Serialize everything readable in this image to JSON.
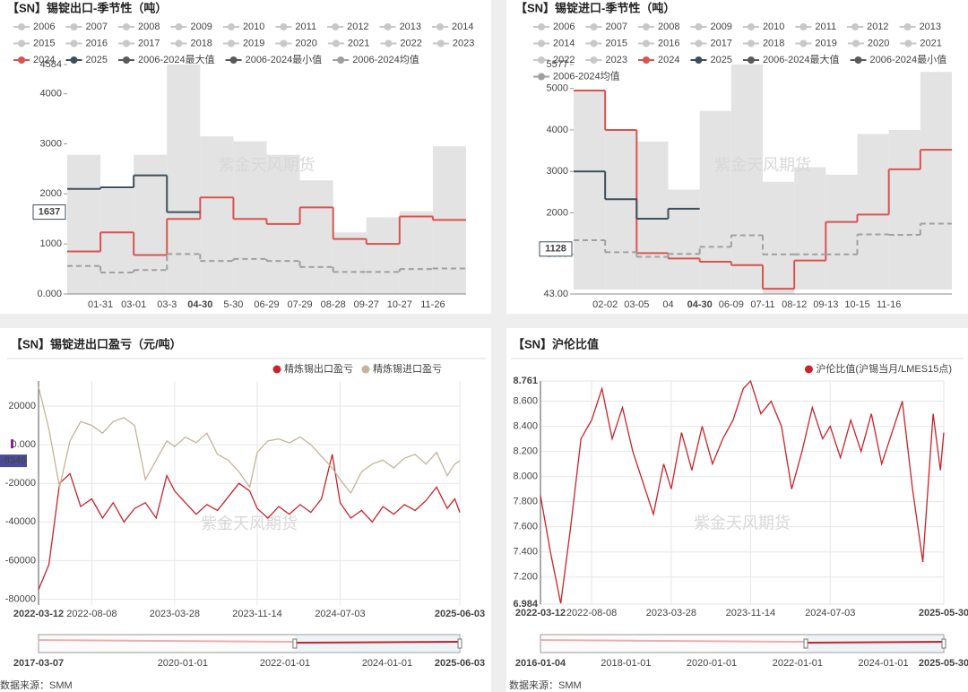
{
  "chart_data": [
    {
      "type": "seasonal",
      "title": "【SN】锡锭出口-季节性（吨）",
      "watermark": "紫金天风期货",
      "legend_hidden": [
        "2006",
        "2007",
        "2008",
        "2009",
        "2010",
        "2011",
        "2012",
        "2013",
        "2014",
        "2015",
        "2016",
        "2017",
        "2018",
        "2019",
        "2020",
        "2021",
        "2022",
        "2023"
      ],
      "categories": [
        "01-31",
        "03-01",
        "03-3",
        "04-30",
        "5-30",
        "06-29",
        "07-29",
        "08-28",
        "09-27",
        "10-27",
        "11-26",
        null
      ],
      "series": [
        {
          "name": "2024",
          "color": "#d9534f",
          "style": "step",
          "values": [
            850,
            1230,
            780,
            1500,
            1930,
            1500,
            1400,
            1730,
            1100,
            1000,
            1550,
            1480
          ]
        },
        {
          "name": "2025",
          "color": "#3d4f5c",
          "style": "step",
          "values": [
            2100,
            2130,
            2370,
            1637,
            null,
            null,
            null,
            null,
            null,
            null,
            null,
            null
          ]
        },
        {
          "name": "2006-2024最大值",
          "color": "#5a5a5a",
          "style": "band-top",
          "values": [
            2780,
            2100,
            2780,
            4584,
            3150,
            3050,
            2780,
            2270,
            1230,
            1530,
            1650,
            2950
          ]
        },
        {
          "name": "2006-2024最小值",
          "color": "#5a5a5a",
          "style": "band-bottom",
          "values": [
            0,
            0,
            0,
            0,
            0,
            0,
            0,
            0,
            0,
            0,
            0,
            0
          ]
        },
        {
          "name": "2006-2024均值",
          "color": "#a0a0a0",
          "style": "dashed-step",
          "values": [
            560,
            430,
            480,
            800,
            660,
            700,
            660,
            540,
            440,
            440,
            500,
            510
          ]
        }
      ],
      "ylim": [
        0,
        4584
      ],
      "yticks": [
        {
          "value": 0,
          "label": "0.000"
        },
        1000,
        2000,
        3000,
        4000,
        4584
      ],
      "pointer_x": "04-30",
      "pointer_y": 1637
    },
    {
      "type": "seasonal",
      "title": "【SN】锡锭进口-季节性（吨）",
      "watermark": "紫金天风期货",
      "legend_hidden": [
        "2006",
        "2007",
        "2008",
        "2009",
        "2010",
        "2011",
        "2012",
        "2013",
        "2014",
        "2015",
        "2016",
        "2017",
        "2018",
        "2019",
        "2020",
        "2021",
        "2022",
        "2023"
      ],
      "categories": [
        "02-02",
        "03-05",
        "04",
        "04-30",
        "06-09",
        "07-11",
        "08-12",
        "09-13",
        "10-15",
        "11-16",
        null,
        null
      ],
      "series": [
        {
          "name": "2024",
          "color": "#d9534f",
          "style": "step",
          "values": [
            4950,
            4000,
            1030,
            900,
            820,
            740,
            170,
            850,
            1780,
            1960,
            3050,
            3520
          ]
        },
        {
          "name": "2025",
          "color": "#3d4f5c",
          "style": "step",
          "values": [
            3000,
            2330,
            1860,
            2100,
            null,
            null,
            null,
            null,
            null,
            null,
            null,
            null
          ]
        },
        {
          "name": "2006-2024最大值",
          "color": "#5a5a5a",
          "style": "band-top",
          "values": [
            4950,
            4000,
            3720,
            2560,
            4460,
            5577,
            2750,
            3100,
            2920,
            3900,
            4000,
            5400
          ]
        },
        {
          "name": "2006-2024最小值",
          "color": "#5a5a5a",
          "style": "band-bottom",
          "values": [
            150,
            150,
            150,
            150,
            150,
            150,
            43,
            150,
            150,
            150,
            150,
            150
          ]
        },
        {
          "name": "2006-2024均值",
          "color": "#a0a0a0",
          "style": "dashed-step",
          "values": [
            1340,
            1050,
            940,
            1010,
            1180,
            1460,
            1000,
            1000,
            1000,
            1480,
            1470,
            1740
          ]
        }
      ],
      "ylim": [
        43,
        5577
      ],
      "yticks": [
        {
          "value": 43,
          "label": "43.00"
        },
        1000,
        2000,
        3000,
        4000,
        5000,
        5577
      ],
      "pointer_x": "04-30",
      "pointer_y": 1128
    },
    {
      "type": "line",
      "title": "【SN】锡锭进出口盈亏（元/吨）",
      "watermark": "紫金天风期货",
      "source": "数据来源：SMM",
      "x": [
        "2022-03-12",
        "2022-04-10",
        "2022-05-10",
        "2022-06-08",
        "2022-07-08",
        "2022-08-08",
        "2022-09-07",
        "2022-10-07",
        "2022-11-06",
        "2022-12-06",
        "2023-01-05",
        "2023-02-04",
        "2023-03-06",
        "2023-03-28",
        "2023-04-27",
        "2023-05-27",
        "2023-06-26",
        "2023-07-26",
        "2023-08-25",
        "2023-09-24",
        "2023-10-24",
        "2023-11-14",
        "2023-12-14",
        "2024-01-13",
        "2024-02-12",
        "2024-03-13",
        "2024-04-12",
        "2024-05-12",
        "2024-06-11",
        "2024-07-03",
        "2024-08-02",
        "2024-09-01",
        "2024-10-01",
        "2024-10-31",
        "2024-11-30",
        "2024-12-30",
        "2025-01-29",
        "2025-02-28",
        "2025-03-30",
        "2025-04-29",
        "2025-05-20",
        "2025-06-03"
      ],
      "series": [
        {
          "name": "精炼锡出口盈亏",
          "color": "#c8232c",
          "values": [
            -75000,
            -62000,
            -20000,
            -15000,
            -32000,
            -28000,
            -38000,
            -30000,
            -40000,
            -33000,
            -30000,
            -38000,
            -16000,
            -24000,
            -30000,
            -36000,
            -31000,
            -34000,
            -27000,
            -20000,
            -24000,
            -33000,
            -38000,
            -32000,
            -36000,
            -31000,
            -35000,
            -28000,
            -5000,
            -30000,
            -38000,
            -34000,
            -40000,
            -32000,
            -36000,
            -31000,
            -34000,
            -29000,
            -22000,
            -33000,
            -28000,
            -35000
          ]
        },
        {
          "name": "精炼锡进口盈亏",
          "color": "#c5b49a",
          "values": [
            30000,
            8000,
            -22000,
            2000,
            12000,
            10000,
            6000,
            12000,
            14000,
            10000,
            -18000,
            -8000,
            2000,
            -1000,
            4000,
            1000,
            6000,
            -5000,
            -8000,
            -14000,
            -22000,
            -4000,
            2000,
            3000,
            1000,
            4000,
            0,
            -6000,
            -12000,
            -18000,
            -25000,
            -14000,
            -10000,
            -8000,
            -12000,
            -7000,
            -5000,
            -10000,
            -4000,
            -16000,
            -10000,
            -8346
          ]
        }
      ],
      "xlim": [
        "2022-03-12",
        "2025-06-03"
      ],
      "xticks": [
        "2022-03-12",
        "2022-08-08",
        "2023-03-28",
        "2023-11-14",
        "2024-07-03",
        "2025-06-03"
      ],
      "ylim": [
        -83000,
        33000
      ],
      "yticks": [
        20000,
        {
          "value": 0,
          "label": "0.000"
        },
        -20000,
        -40000,
        -60000,
        -80000
      ],
      "grid": true,
      "pointer_y": -8346,
      "slider_ticks": [
        "2017-03-07",
        "2020-01-01",
        "2022-01-01",
        "2024-01-01",
        "2025-06-03"
      ]
    },
    {
      "type": "line",
      "title": "【SN】沪伦比值",
      "watermark": "紫金天风期货",
      "source": "数据来源：SMM",
      "x": [
        "2022-03-12",
        "2022-04-10",
        "2022-05-10",
        "2022-06-08",
        "2022-07-08",
        "2022-08-08",
        "2022-09-07",
        "2022-10-07",
        "2022-11-06",
        "2022-12-06",
        "2023-01-05",
        "2023-02-04",
        "2023-03-06",
        "2023-03-28",
        "2023-04-27",
        "2023-05-27",
        "2023-06-26",
        "2023-07-26",
        "2023-08-25",
        "2023-09-24",
        "2023-10-24",
        "2023-11-14",
        "2023-12-14",
        "2024-01-13",
        "2024-02-12",
        "2024-03-13",
        "2024-04-12",
        "2024-05-12",
        "2024-06-11",
        "2024-07-03",
        "2024-08-02",
        "2024-09-01",
        "2024-10-01",
        "2024-10-31",
        "2024-11-30",
        "2024-12-30",
        "2025-01-29",
        "2025-02-28",
        "2025-03-30",
        "2025-04-29",
        "2025-05-20",
        "2025-05-30"
      ],
      "series": [
        {
          "name": "沪伦比值(沪锡当月/LMES15点)",
          "color": "#cc2229",
          "values": [
            7.85,
            7.4,
            6.99,
            7.6,
            8.3,
            8.45,
            8.7,
            8.3,
            8.55,
            8.2,
            7.95,
            7.7,
            8.1,
            7.9,
            8.35,
            8.05,
            8.4,
            8.1,
            8.3,
            8.45,
            8.7,
            8.76,
            8.5,
            8.6,
            8.4,
            7.9,
            8.2,
            8.55,
            8.3,
            8.4,
            8.15,
            8.45,
            8.2,
            8.5,
            8.1,
            8.35,
            8.6,
            7.9,
            7.32,
            8.5,
            8.05,
            8.35
          ]
        }
      ],
      "xlim": [
        "2022-03-12",
        "2025-05-30"
      ],
      "xticks": [
        "2022-03-12",
        "2022-08-08",
        "2023-03-28",
        "2023-11-14",
        "2024-07-03",
        "2025-05-30"
      ],
      "ylim": [
        6.984,
        8.761
      ],
      "yticks": [
        6.984,
        {
          "value": 7.2,
          "label": "7.200"
        },
        {
          "value": 7.4,
          "label": "7.400"
        },
        {
          "value": 7.6,
          "label": "7.600"
        },
        {
          "value": 7.8,
          "label": "7.800"
        },
        {
          "value": 8,
          "label": "8.000"
        },
        {
          "value": 8.2,
          "label": "8.200"
        },
        {
          "value": 8.4,
          "label": "8.400"
        },
        {
          "value": 8.6,
          "label": "8.600"
        },
        8.761
      ],
      "grid": true,
      "slider_ticks": [
        "2016-01-04",
        "2018-01-01",
        "2020-01-01",
        "2022-01-01",
        "2024-01-01",
        "2025-05-30"
      ]
    }
  ]
}
